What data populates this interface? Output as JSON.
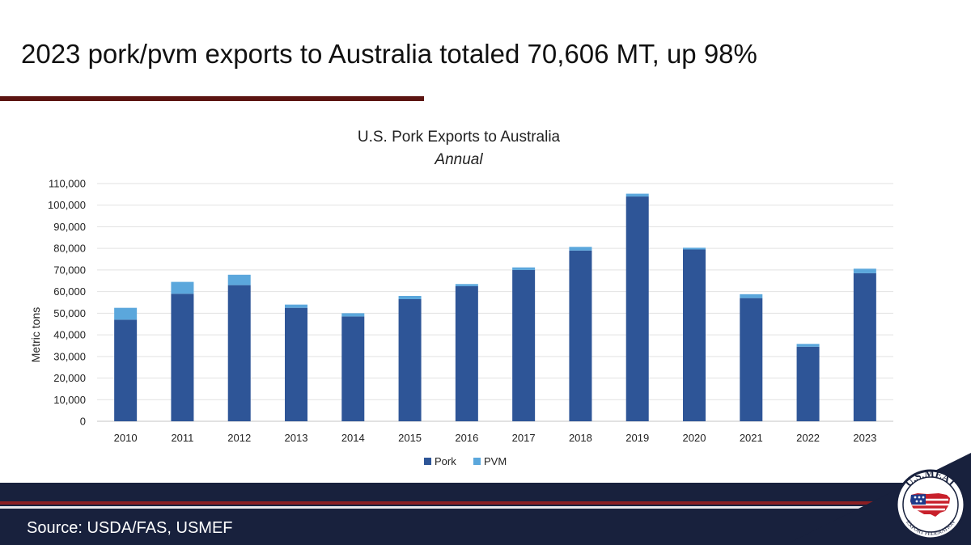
{
  "slide": {
    "title": "2023 pork/pvm exports to Australia totaled 70,606 MT, up 98%",
    "source": "Source: USDA/FAS, USMEF"
  },
  "logo": {
    "text_top": "U.S.MEAT",
    "text_bottom": "EXPORT FEDERATION",
    "icon": "usa-flag-map-logo"
  },
  "colors": {
    "pork": "#2e5597",
    "pvm": "#5ba7dc",
    "footer": "#18213d",
    "accent_red": "#8b1e22",
    "title_rule": "#5c1512"
  },
  "chart_data": {
    "type": "bar",
    "stacked": true,
    "title": "U.S. Pork Exports to Australia",
    "subtitle": "Annual",
    "ylabel": "Metric tons",
    "xlabel": "",
    "ylim": [
      0,
      110000
    ],
    "yticks": [
      0,
      10000,
      20000,
      30000,
      40000,
      50000,
      60000,
      70000,
      80000,
      90000,
      100000,
      110000
    ],
    "ytick_labels": [
      "0",
      "10,000",
      "20,000",
      "30,000",
      "40,000",
      "50,000",
      "60,000",
      "70,000",
      "80,000",
      "90,000",
      "100,000",
      "110,000"
    ],
    "grid": true,
    "legend_position": "bottom",
    "categories": [
      "2010",
      "2011",
      "2012",
      "2013",
      "2014",
      "2015",
      "2016",
      "2017",
      "2018",
      "2019",
      "2020",
      "2021",
      "2022",
      "2023"
    ],
    "series": [
      {
        "name": "Pork",
        "values": [
          47000,
          59000,
          63000,
          52500,
          48500,
          56500,
          62500,
          70000,
          79000,
          104000,
          79500,
          57000,
          34500,
          68500
        ]
      },
      {
        "name": "PVM",
        "values": [
          5500,
          5500,
          4800,
          1500,
          1500,
          1500,
          1000,
          1200,
          1700,
          1300,
          800,
          1800,
          1300,
          2100
        ]
      }
    ]
  }
}
